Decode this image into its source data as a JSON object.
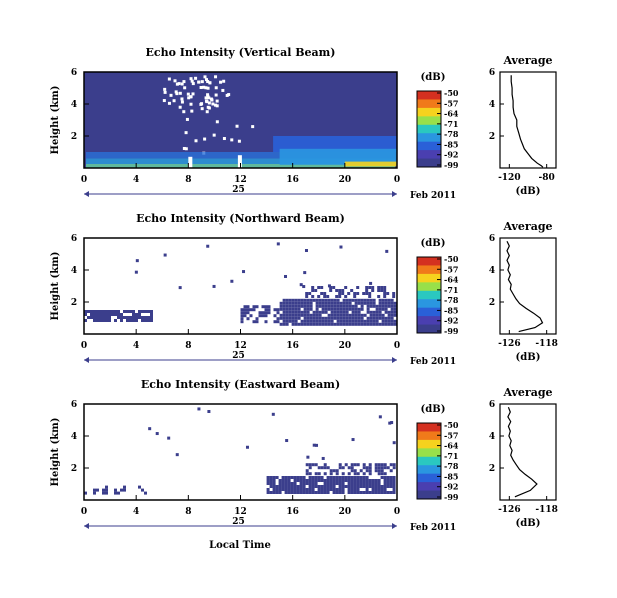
{
  "colors": {
    "background": "#3b3e8c",
    "colormap": [
      "#d43020",
      "#f07a1a",
      "#f6d21e",
      "#98e04a",
      "#2ac8c0",
      "#2a96e0",
      "#2a60d8",
      "#4a3fb0",
      "#3b3e8c"
    ],
    "axis": "#000000"
  },
  "xaxis_label": "Local Time",
  "chart_data": [
    {
      "type": "heatmap",
      "title": "Echo Intensity (Vertical Beam)",
      "ylabel": "Height (km)",
      "ylim": [
        0,
        6
      ],
      "yticks": [
        "6",
        "4",
        "2"
      ],
      "xlim": [
        0,
        24
      ],
      "xticks": [
        "0",
        "4",
        "8",
        "12",
        "16",
        "20",
        "0"
      ],
      "date_label": "25",
      "date_suffix": "Feb 2011",
      "colorbar": {
        "unit": "(dB)",
        "labels": [
          "-50",
          "-57",
          "-64",
          "-71",
          "-78",
          "-85",
          "-92",
          "-99"
        ]
      },
      "profile": {
        "title": "Average",
        "xlabel": "(dB)",
        "xticks": [
          "-120",
          "-80"
        ],
        "xlim": [
          -130,
          -70
        ],
        "yticks": [
          "6",
          "4",
          "2"
        ],
        "x": [
          -118,
          -118,
          -117,
          -117,
          -116,
          -116,
          -115,
          -112,
          -112,
          -110,
          -108,
          -106,
          -104,
          -100,
          -96,
          -90,
          -86,
          -84
        ],
        "y": [
          5.8,
          5.4,
          5.0,
          4.6,
          4.2,
          3.8,
          3.4,
          3.0,
          2.6,
          2.2,
          1.8,
          1.5,
          1.2,
          0.9,
          0.6,
          0.3,
          0.15,
          0.05
        ]
      }
    },
    {
      "type": "heatmap",
      "title": "Echo Intensity (Northward Beam)",
      "ylabel": "Height (km)",
      "ylim": [
        0,
        6
      ],
      "yticks": [
        "6",
        "4",
        "2"
      ],
      "xlim": [
        0,
        24
      ],
      "xticks": [
        "0",
        "4",
        "8",
        "12",
        "16",
        "20",
        "0"
      ],
      "date_label": "25",
      "date_suffix": "Feb 2011",
      "colorbar": {
        "unit": "(dB)",
        "labels": [
          "-50",
          "-57",
          "-64",
          "-71",
          "-78",
          "-85",
          "-92",
          "-99"
        ]
      },
      "profile": {
        "title": "Average",
        "xlabel": "(dB)",
        "xticks": [
          "-126",
          "-118"
        ],
        "xlim": [
          -128,
          -116
        ],
        "yticks": [
          "6",
          "4",
          "2"
        ],
        "x": [
          -126.5,
          -126,
          -126.5,
          -126,
          -126.5,
          -126,
          -126.3,
          -125.8,
          -126.2,
          -125.6,
          -125.8,
          -125.2,
          -124.6,
          -123.8,
          -122.4,
          -120.8,
          -119.4,
          -118.9,
          -120.5,
          -124
        ],
        "y": [
          5.8,
          5.5,
          5.2,
          4.9,
          4.6,
          4.3,
          4.0,
          3.7,
          3.4,
          3.1,
          2.8,
          2.5,
          2.2,
          1.9,
          1.6,
          1.3,
          1.0,
          0.7,
          0.4,
          0.15
        ]
      }
    },
    {
      "type": "heatmap",
      "title": "Echo Intensity (Eastward Beam)",
      "ylabel": "Height (km)",
      "ylim": [
        0,
        6
      ],
      "yticks": [
        "6",
        "4",
        "2"
      ],
      "xlim": [
        0,
        24
      ],
      "xticks": [
        "0",
        "4",
        "8",
        "12",
        "16",
        "20",
        "0"
      ],
      "date_label": "25",
      "date_suffix": "Feb 2011",
      "colorbar": {
        "unit": "(dB)",
        "labels": [
          "-50",
          "-57",
          "-64",
          "-71",
          "-78",
          "-85",
          "-92",
          "-99"
        ]
      },
      "profile": {
        "title": "Average",
        "xlabel": "(dB)",
        "xticks": [
          "-126",
          "-118"
        ],
        "xlim": [
          -128,
          -116
        ],
        "yticks": [
          "6",
          "4",
          "2"
        ],
        "x": [
          -126.2,
          -125.8,
          -126.3,
          -125.7,
          -126.2,
          -125.8,
          -126.1,
          -125.6,
          -125.9,
          -125.4,
          -125.7,
          -125.2,
          -124.5,
          -123.8,
          -122.6,
          -121.2,
          -120.1,
          -121.5,
          -124.8
        ],
        "y": [
          5.8,
          5.5,
          5.2,
          4.9,
          4.6,
          4.3,
          4.0,
          3.7,
          3.4,
          3.1,
          2.8,
          2.5,
          2.2,
          1.9,
          1.6,
          1.3,
          1.0,
          0.6,
          0.2
        ]
      }
    }
  ]
}
